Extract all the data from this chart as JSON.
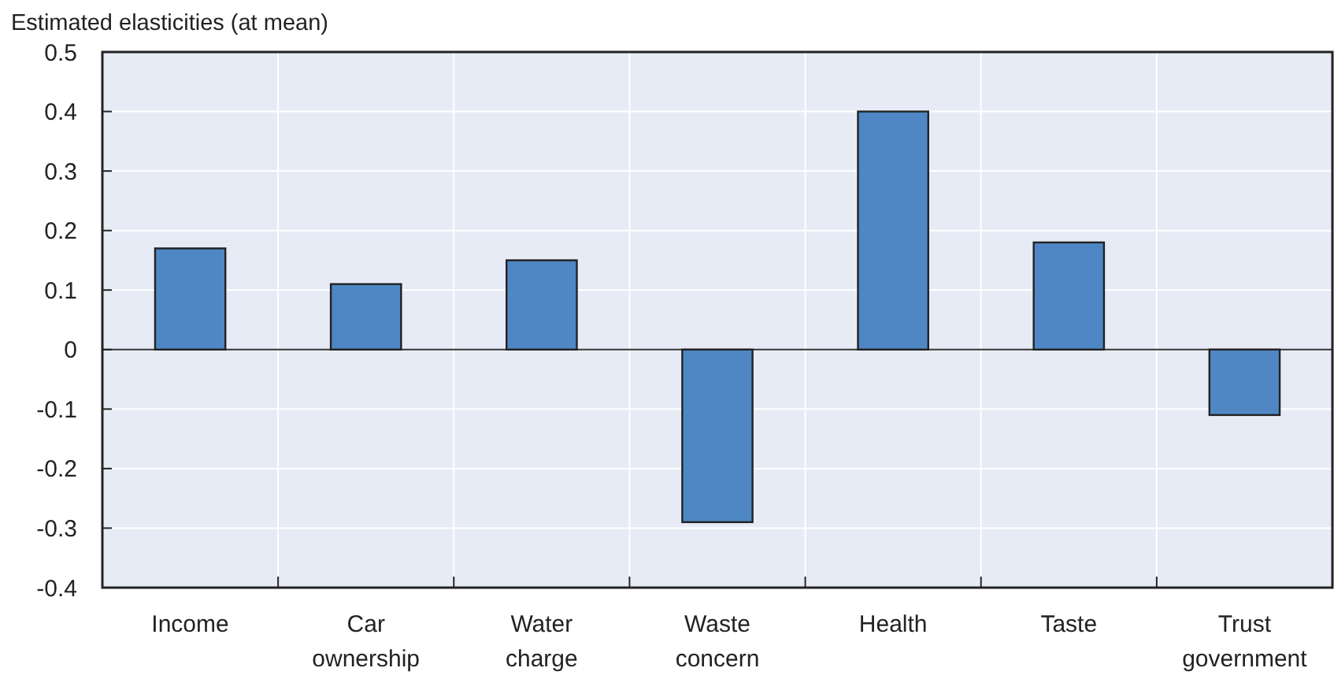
{
  "chart_data": {
    "type": "bar",
    "ylabel": "Estimated elasticities (at mean)",
    "categories": [
      "Income",
      "Car ownership",
      "Water charge",
      "Waste concern",
      "Health",
      "Taste",
      "Trust government"
    ],
    "values": [
      0.17,
      0.11,
      0.15,
      -0.29,
      0.4,
      0.18,
      -0.11
    ],
    "color": "#4e87c4",
    "ylim": [
      -0.4,
      0.5
    ],
    "yticks": [
      -0.4,
      -0.3,
      -0.2,
      -0.1,
      0,
      0.1,
      0.2,
      0.3,
      0.4,
      0.5
    ],
    "grid": true
  }
}
